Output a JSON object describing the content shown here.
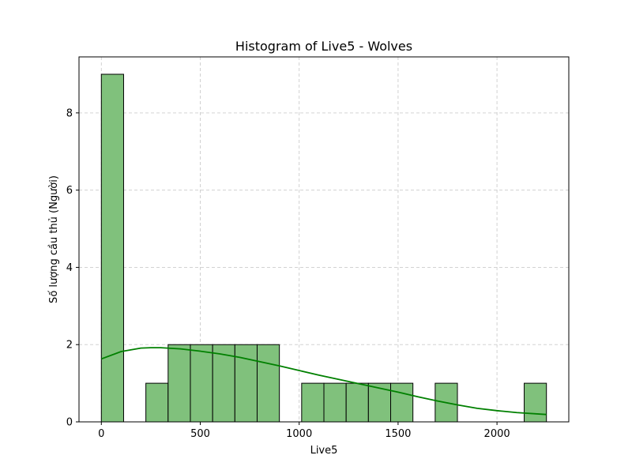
{
  "chart_data": {
    "type": "bar",
    "title": "Histogram of Live5 - Wolves",
    "xlabel": "Live5",
    "ylabel": "Số lượng cầu thủ (Người)",
    "xlim": [
      -113,
      2363
    ],
    "ylim": [
      0,
      9.45
    ],
    "xticks": [
      0,
      500,
      1000,
      1500,
      2000
    ],
    "yticks": [
      0,
      2,
      4,
      6,
      8
    ],
    "grid": true,
    "grid_style": "dashed",
    "legend": "none",
    "bar_color": "#80c17c",
    "bar_edge_color": "#000000",
    "kde_color": "#008000",
    "bins": [
      {
        "x0": 0,
        "x1": 112.5,
        "count": 9
      },
      {
        "x0": 112.5,
        "x1": 225,
        "count": 0
      },
      {
        "x0": 225,
        "x1": 337.5,
        "count": 1
      },
      {
        "x0": 337.5,
        "x1": 450,
        "count": 2
      },
      {
        "x0": 450,
        "x1": 562.5,
        "count": 2
      },
      {
        "x0": 562.5,
        "x1": 675,
        "count": 2
      },
      {
        "x0": 675,
        "x1": 787.5,
        "count": 2
      },
      {
        "x0": 787.5,
        "x1": 900,
        "count": 2
      },
      {
        "x0": 900,
        "x1": 1012.5,
        "count": 0
      },
      {
        "x0": 1012.5,
        "x1": 1125,
        "count": 1
      },
      {
        "x0": 1125,
        "x1": 1237.5,
        "count": 1
      },
      {
        "x0": 1237.5,
        "x1": 1350,
        "count": 1
      },
      {
        "x0": 1350,
        "x1": 1462.5,
        "count": 1
      },
      {
        "x0": 1462.5,
        "x1": 1575,
        "count": 1
      },
      {
        "x0": 1575,
        "x1": 1687.5,
        "count": 0
      },
      {
        "x0": 1687.5,
        "x1": 1800,
        "count": 1
      },
      {
        "x0": 1800,
        "x1": 1912.5,
        "count": 0
      },
      {
        "x0": 1912.5,
        "x1": 2025,
        "count": 0
      },
      {
        "x0": 2025,
        "x1": 2137.5,
        "count": 0
      },
      {
        "x0": 2137.5,
        "x1": 2250,
        "count": 1
      }
    ],
    "kde": {
      "x": [
        0,
        100,
        200,
        250,
        300,
        400,
        500,
        600,
        700,
        800,
        900,
        1000,
        1100,
        1200,
        1300,
        1400,
        1500,
        1600,
        1700,
        1800,
        1900,
        2000,
        2100,
        2250
      ],
      "y": [
        1.63,
        1.82,
        1.91,
        1.92,
        1.92,
        1.89,
        1.83,
        1.76,
        1.67,
        1.56,
        1.45,
        1.33,
        1.21,
        1.1,
        0.99,
        0.88,
        0.77,
        0.65,
        0.54,
        0.44,
        0.35,
        0.29,
        0.24,
        0.19
      ]
    }
  }
}
